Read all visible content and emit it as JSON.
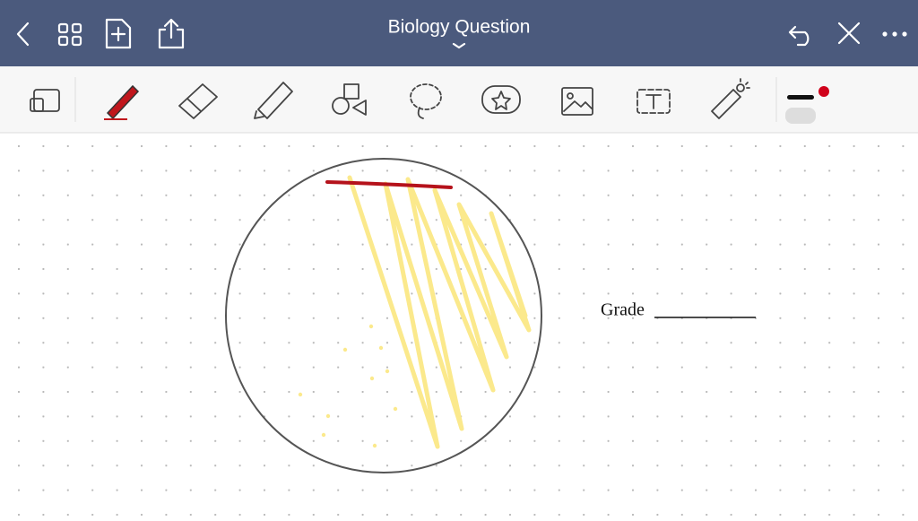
{
  "header": {
    "title": "Biology Question"
  },
  "page": {
    "label": "Grade"
  }
}
